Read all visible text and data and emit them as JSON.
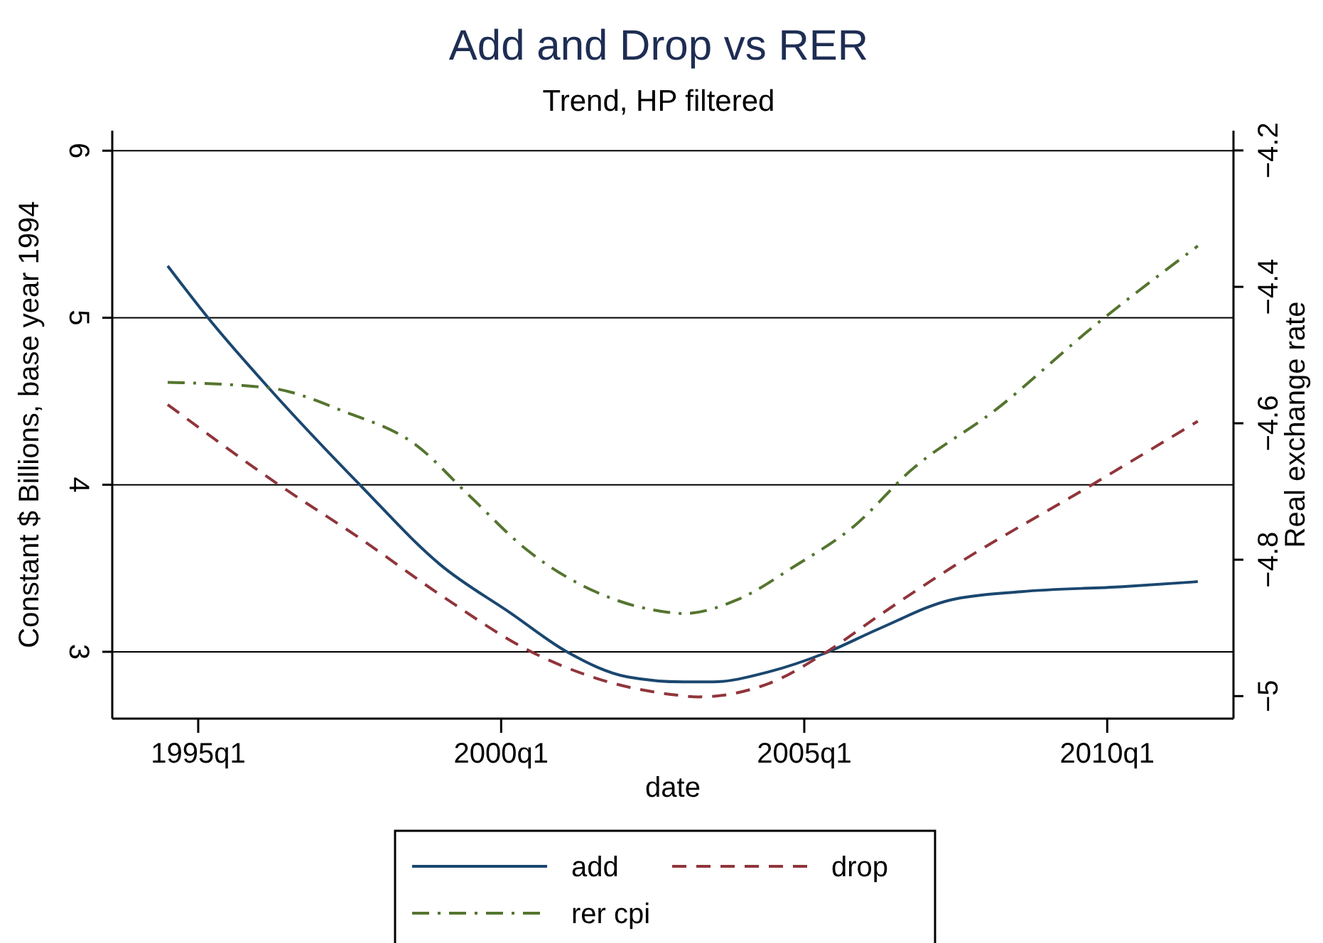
{
  "chart_data": {
    "type": "line",
    "title": "Add and Drop vs RER",
    "subtitle": "Trend, HP filtered",
    "xlabel": "date",
    "ylabel": "Constant $ Billions, base year 1994",
    "y2label": "Real exchange rate",
    "xlim": [
      "1993-08",
      "2012-02"
    ],
    "xticks": [
      {
        "value": "1995-01",
        "label": "1995q1"
      },
      {
        "value": "2000-01",
        "label": "2000q1"
      },
      {
        "value": "2005-01",
        "label": "2005q1"
      },
      {
        "value": "2010-01",
        "label": "2010q1"
      }
    ],
    "ylim": [
      2.6,
      6.12
    ],
    "yticks": [
      3,
      4,
      5,
      6
    ],
    "y2lim": [
      -5.033,
      -4.171
    ],
    "y2ticks": [
      {
        "value": -5,
        "label": "−5"
      },
      {
        "value": -4.8,
        "label": "−4.8"
      },
      {
        "value": -4.6,
        "label": "−4.6"
      },
      {
        "value": -4.4,
        "label": "−4.4"
      },
      {
        "value": -4.2,
        "label": "−4.2"
      }
    ],
    "grid": "y",
    "legend": "bottom",
    "series": [
      {
        "name": "add",
        "color": "#1a476f",
        "line_style": "solid",
        "x": [
          "1994-07",
          "1995-03",
          "1996-03",
          "1997-09",
          "1999-01",
          "2000-03",
          "2001-02",
          "2002-02",
          "2003-01",
          "2003-07",
          "2004-06",
          "2005-05",
          "2006-04",
          "2007-06",
          "2008-08",
          "2010-04",
          "2011-07"
        ],
        "values": [
          5.31,
          5.0,
          4.58,
          4.0,
          3.52,
          3.23,
          3.0,
          2.85,
          2.82,
          2.82,
          2.88,
          2.99,
          3.14,
          3.31,
          3.36,
          3.39,
          3.42
        ]
      },
      {
        "name": "drop",
        "color": "#90353b",
        "line_style": "dashed",
        "x": [
          "1994-07",
          "1996-05",
          "1997-09",
          "1999-01",
          "2000-07",
          "2001-08",
          "2002-12",
          "2003-04",
          "2004-06",
          "2005-05",
          "2006-04",
          "2007-06",
          "2009-10",
          "2011-07"
        ],
        "values": [
          4.48,
          4.0,
          3.68,
          3.34,
          3.0,
          2.84,
          2.74,
          2.73,
          2.81,
          2.99,
          3.22,
          3.5,
          4.0,
          4.38
        ]
      },
      {
        "name": "rer cpi",
        "color": "#55752f",
        "line_style": "dashdot",
        "axis": "y2",
        "x": [
          "1994-07",
          "1996-03",
          "1997-06",
          "1998-08",
          "1999-07",
          "2000-06",
          "2001-08",
          "2002-10",
          "2003-01",
          "2003-12",
          "2004-11",
          "2005-11",
          "2006-10",
          "2008-03",
          "2009-10",
          "2011-07"
        ],
        "values": [
          -4.54,
          -4.548,
          -4.583,
          -4.631,
          -4.708,
          -4.785,
          -4.848,
          -4.877,
          -4.879,
          -4.858,
          -4.81,
          -4.75,
          -4.67,
          -4.58,
          -4.46,
          -4.34
        ]
      }
    ]
  }
}
